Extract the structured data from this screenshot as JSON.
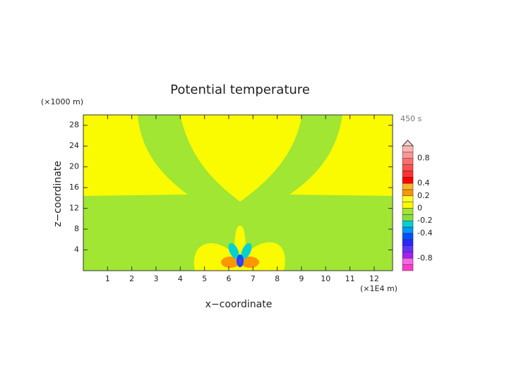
{
  "chart_data": {
    "type": "contour",
    "title": "Potential temperature",
    "x_label": "x−coordinate",
    "y_label": "z−coordinate",
    "x_unit": "(×1E4 m)",
    "y_unit": "(×1000 m)",
    "time_label": "450 s",
    "xlim": [
      0,
      12.76
    ],
    "xticks": [
      1,
      2,
      3,
      4,
      5,
      6,
      7,
      8,
      9,
      10,
      11,
      12
    ],
    "ylim": [
      0,
      30
    ],
    "yticks": [
      4,
      8,
      12,
      16,
      20,
      24,
      28
    ],
    "colorbar": {
      "bounds": [
        -1,
        -0.9,
        -0.8,
        -0.7,
        -0.6,
        -0.5,
        -0.4,
        -0.3,
        -0.2,
        -0.1,
        0,
        0.1,
        0.2,
        0.3,
        0.4,
        0.5,
        0.6,
        0.7,
        0.8,
        0.9,
        1
      ],
      "colors": [
        "#ff3cc8",
        "#ff64e6",
        "#a020f0",
        "#6432ff",
        "#2828ff",
        "#0050ff",
        "#0096ff",
        "#00d2d2",
        "#8cdc3c",
        "#a0e632",
        "#fafa00",
        "#ffff28",
        "#ff9600",
        "#ffb428",
        "#ff0000",
        "#ff3232",
        "#ff5050",
        "#ff6e6e",
        "#ff9696",
        "#ffb4b4"
      ],
      "ticks": [
        -0.8,
        -0.4,
        -0.2,
        0,
        0.2,
        0.4,
        0.8
      ]
    }
  }
}
